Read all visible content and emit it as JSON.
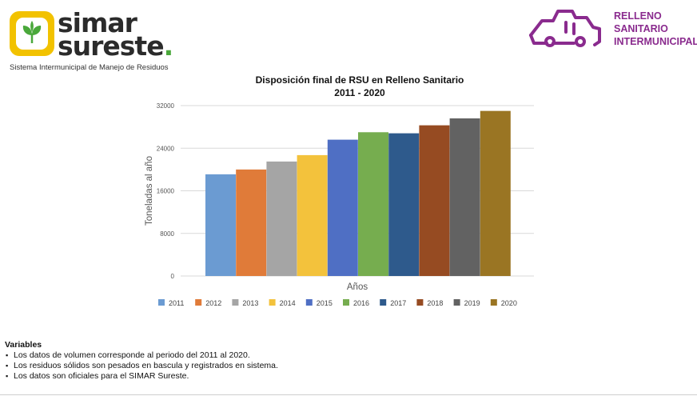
{
  "logo": {
    "word1": "simar",
    "word2": "sureste",
    "word2_dot": ".",
    "tagline": "Sistema Intermunicipal de Manejo de Residuos",
    "icon": "sprout-leaf-icon",
    "badge_color": "#f2c200",
    "leaf_color": "#4aa83b"
  },
  "relleno_logo": {
    "icon": "garbage-compactor-truck-icon",
    "line1": "RELLENO",
    "line2": "SANITARIO",
    "line3": "INTERMUNICIPAL",
    "color": "#8a2b8e"
  },
  "chart_data": {
    "type": "bar",
    "title": "Disposición final de RSU en Relleno Sanitario",
    "subtitle": "2011 - 2020",
    "xlabel": "Años",
    "ylabel": "Toneladas al año",
    "ylim": [
      0,
      32000
    ],
    "yticks": [
      "0",
      "8000",
      "16000",
      "24000",
      "32000"
    ],
    "grid": true,
    "legend_position": "bottom",
    "categories": [
      "2011",
      "2012",
      "2013",
      "2014",
      "2015",
      "2016",
      "2017",
      "2018",
      "2019",
      "2020"
    ],
    "values": [
      19100,
      20000,
      21500,
      22700,
      25600,
      27000,
      26800,
      28300,
      29600,
      31000
    ],
    "colors": [
      "#6b9bd2",
      "#e07b39",
      "#a5a5a5",
      "#f3c23c",
      "#4f6fc4",
      "#76ad4f",
      "#2e5a8c",
      "#964b22",
      "#626262",
      "#9a7523"
    ]
  },
  "notes": {
    "title": "Variables",
    "items": [
      "Los datos de volumen corresponde al periodo del 2011 al  2020.",
      "Los residuos sólidos son pesados en bascula y registrados en sistema.",
      "Los datos son oficiales para el SIMAR Sureste."
    ]
  }
}
